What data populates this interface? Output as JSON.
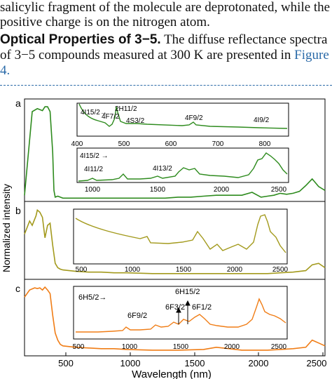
{
  "text": {
    "line1": "salicylic fragment of the molecule are deprotonated, while the",
    "line2": "positive charge is on the nitrogen atom.",
    "heading": "Optical Properties of 3−5.",
    "line3_rest": " The diffuse reflectance spectra",
    "line4": "of 3−5 compounds measured at 300 K are presented in ",
    "line4_link": "Figure",
    "line5_link": "4."
  },
  "figure": {
    "ylabel": "Normalized intensity",
    "xlabel": "Wavelength (nm)",
    "main_ticks": [
      "500",
      "1000",
      "1500",
      "2000",
      "2500"
    ],
    "colors": {
      "a": "#2e8b1e",
      "b": "#a39a1d",
      "c": "#f07d16"
    },
    "panels": {
      "a": {
        "letter": "a",
        "inset1": {
          "ticks": [
            "400",
            "500",
            "600",
            "700",
            "800"
          ],
          "labels": [
            "4I15/2→",
            "4F7/2",
            "2H11/2",
            "4S3/2",
            "4F9/2",
            "4I9/2"
          ]
        },
        "inset2": {
          "ticks": [
            "1000",
            "1500",
            "2000",
            "2500"
          ],
          "labels": [
            "4I15/2 →",
            "4I11/2",
            "4I13/2"
          ]
        }
      },
      "b": {
        "letter": "b",
        "inset": {
          "ticks": [
            "500",
            "1000",
            "1500",
            "2000",
            "2500"
          ]
        }
      },
      "c": {
        "letter": "c",
        "inset": {
          "ticks": [
            "500",
            "1000",
            "1500",
            "2000",
            "2500"
          ],
          "labels": [
            "6H5/2→",
            "6F9/2",
            "6F3/2",
            "6H15/2",
            "6F1/2"
          ]
        }
      }
    }
  },
  "chart_data": {
    "type": "line",
    "xlabel": "Wavelength (nm)",
    "ylabel": "Normalized intensity",
    "xlim": [
      200,
      2550
    ],
    "series": [
      {
        "panel": "a",
        "x": [
          200,
          260,
          300,
          340,
          360,
          380,
          400,
          420,
          430,
          440,
          460,
          480,
          500,
          600,
          700,
          800,
          900,
          1000,
          1100,
          1200,
          1300,
          1400,
          1500,
          1600,
          1700,
          1800,
          1900,
          1980,
          2050,
          2100,
          2150,
          2200,
          2250,
          2300,
          2350,
          2400,
          2450,
          2500,
          2550
        ],
        "y": [
          0.05,
          0.92,
          0.95,
          0.93,
          0.97,
          0.97,
          0.92,
          0.5,
          0.1,
          0.03,
          0.04,
          0.03,
          0.02,
          0.02,
          0.02,
          0.02,
          0.02,
          0.02,
          0.02,
          0.02,
          0.02,
          0.03,
          0.03,
          0.04,
          0.05,
          0.05,
          0.05,
          0.08,
          0.03,
          0.04,
          0.05,
          0.07,
          0.06,
          0.07,
          0.09,
          0.15,
          0.22,
          0.14,
          0.1
        ]
      },
      {
        "panel": "b",
        "x": [
          200,
          240,
          260,
          290,
          300,
          320,
          340,
          360,
          380,
          400,
          420,
          440,
          460,
          480,
          500,
          600,
          700,
          800,
          900,
          1000,
          1200,
          1400,
          1500,
          1600,
          1700,
          1800,
          1900,
          2000,
          2100,
          2200,
          2300,
          2400,
          2450,
          2500,
          2550
        ],
        "y": [
          0.6,
          0.78,
          0.72,
          0.85,
          0.93,
          0.9,
          0.83,
          0.55,
          0.72,
          0.75,
          0.45,
          0.2,
          0.14,
          0.12,
          0.11,
          0.09,
          0.08,
          0.08,
          0.07,
          0.07,
          0.06,
          0.06,
          0.06,
          0.06,
          0.06,
          0.06,
          0.06,
          0.06,
          0.06,
          0.07,
          0.08,
          0.1,
          0.18,
          0.2,
          0.14
        ]
      },
      {
        "panel": "c",
        "x": [
          200,
          240,
          280,
          300,
          320,
          340,
          360,
          380,
          400,
          420,
          440,
          460,
          480,
          500,
          600,
          700,
          800,
          900,
          1000,
          1200,
          1400,
          1600,
          1700,
          1800,
          1900,
          2000,
          2100,
          2200,
          2300,
          2400,
          2450,
          2500,
          2550
        ],
        "y": [
          0.8,
          0.9,
          0.93,
          0.92,
          0.93,
          0.9,
          0.94,
          0.9,
          0.85,
          0.55,
          0.3,
          0.2,
          0.14,
          0.12,
          0.1,
          0.09,
          0.08,
          0.08,
          0.07,
          0.06,
          0.06,
          0.07,
          0.1,
          0.08,
          0.06,
          0.06,
          0.06,
          0.07,
          0.08,
          0.1,
          0.2,
          0.16,
          0.12
        ]
      }
    ]
  }
}
